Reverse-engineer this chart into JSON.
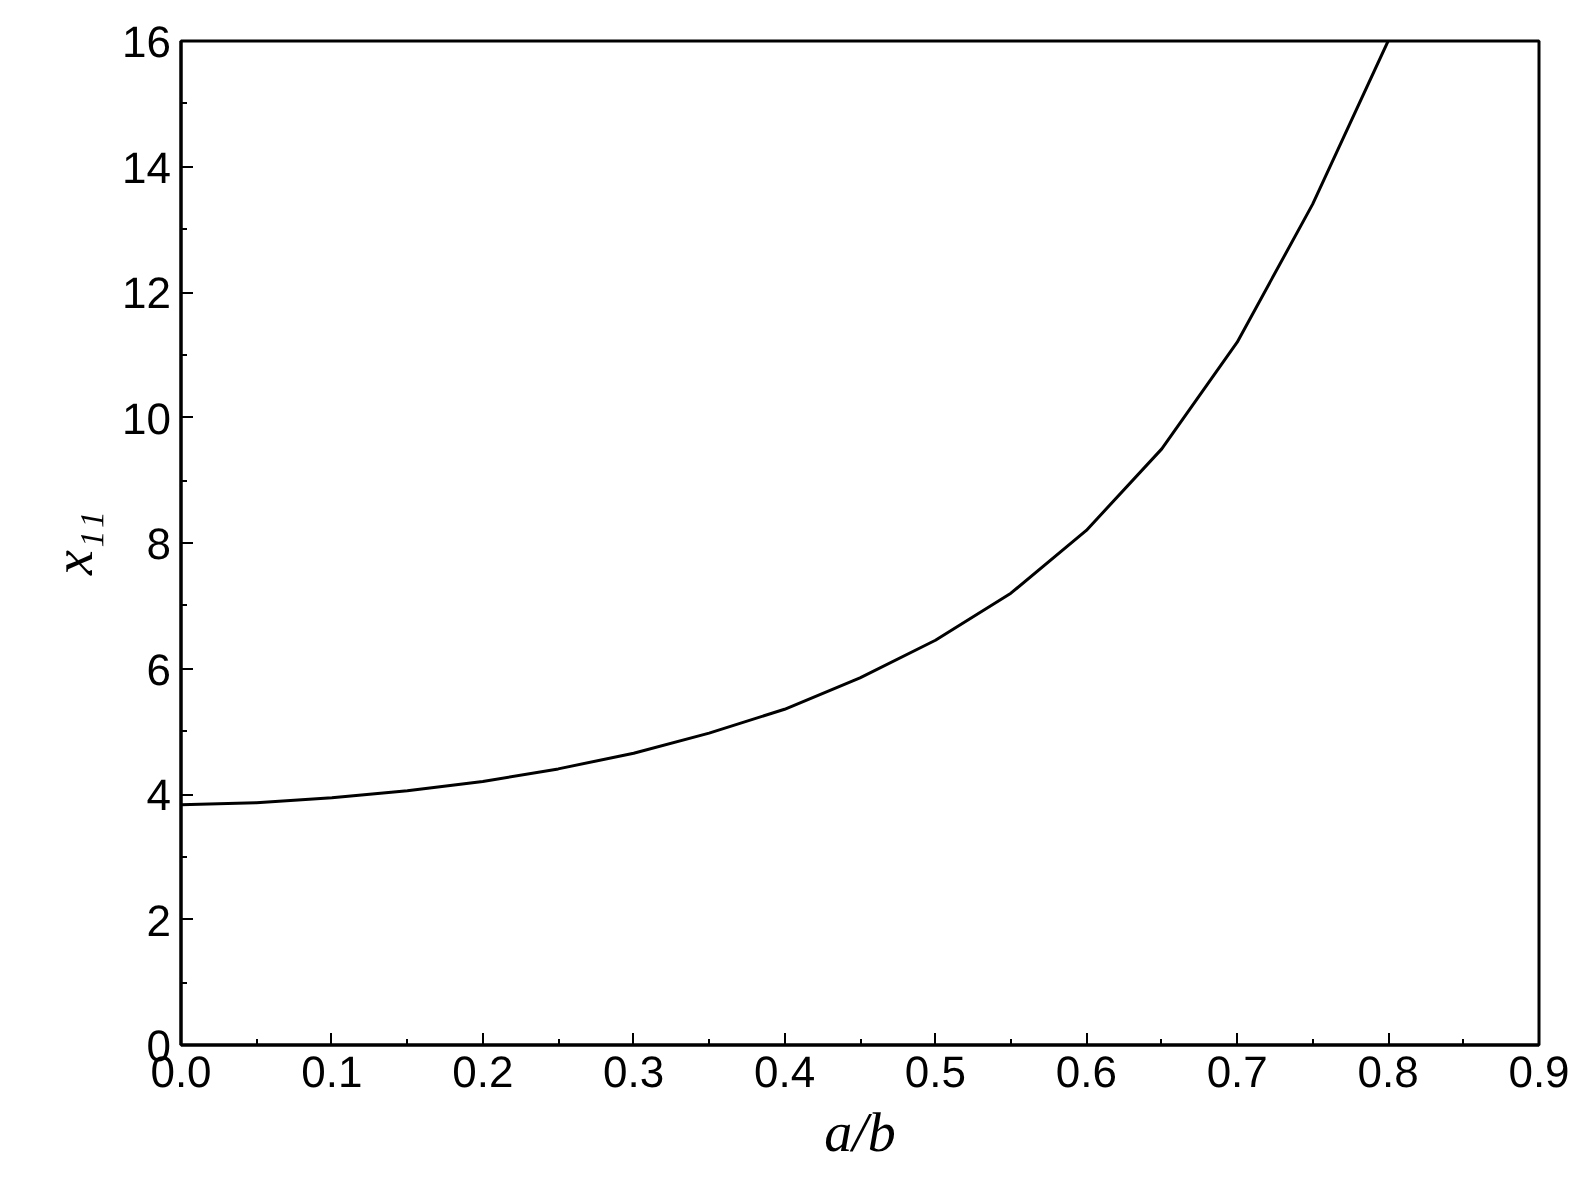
{
  "chart_data": {
    "type": "line",
    "xlabel": "a/b",
    "ylabel": "x₁₁",
    "x": [
      0,
      0.05,
      0.1,
      0.15,
      0.2,
      0.25,
      0.3,
      0.35,
      0.4,
      0.45,
      0.5,
      0.55,
      0.6,
      0.65,
      0.7,
      0.75,
      0.8
    ],
    "series": [
      {
        "color": "#000000",
        "values": [
          3.83,
          3.86,
          3.94,
          4.05,
          4.2,
          4.4,
          4.65,
          4.97,
          5.35,
          5.85,
          6.45,
          7.2,
          8.2,
          9.5,
          11.2,
          13.4,
          16.0
        ]
      }
    ],
    "xlim": [
      0,
      0.9
    ],
    "ylim": [
      0,
      16
    ],
    "xticks": [
      {
        "value": 0,
        "label": "0.0"
      },
      0.1,
      0.2,
      0.3,
      0.4,
      0.5,
      0.6,
      0.7,
      0.8,
      0.9
    ],
    "yticks": [
      0,
      2,
      4,
      6,
      8,
      10,
      12,
      14,
      16
    ],
    "grid": false,
    "marker": "none",
    "line_style": "solid"
  }
}
